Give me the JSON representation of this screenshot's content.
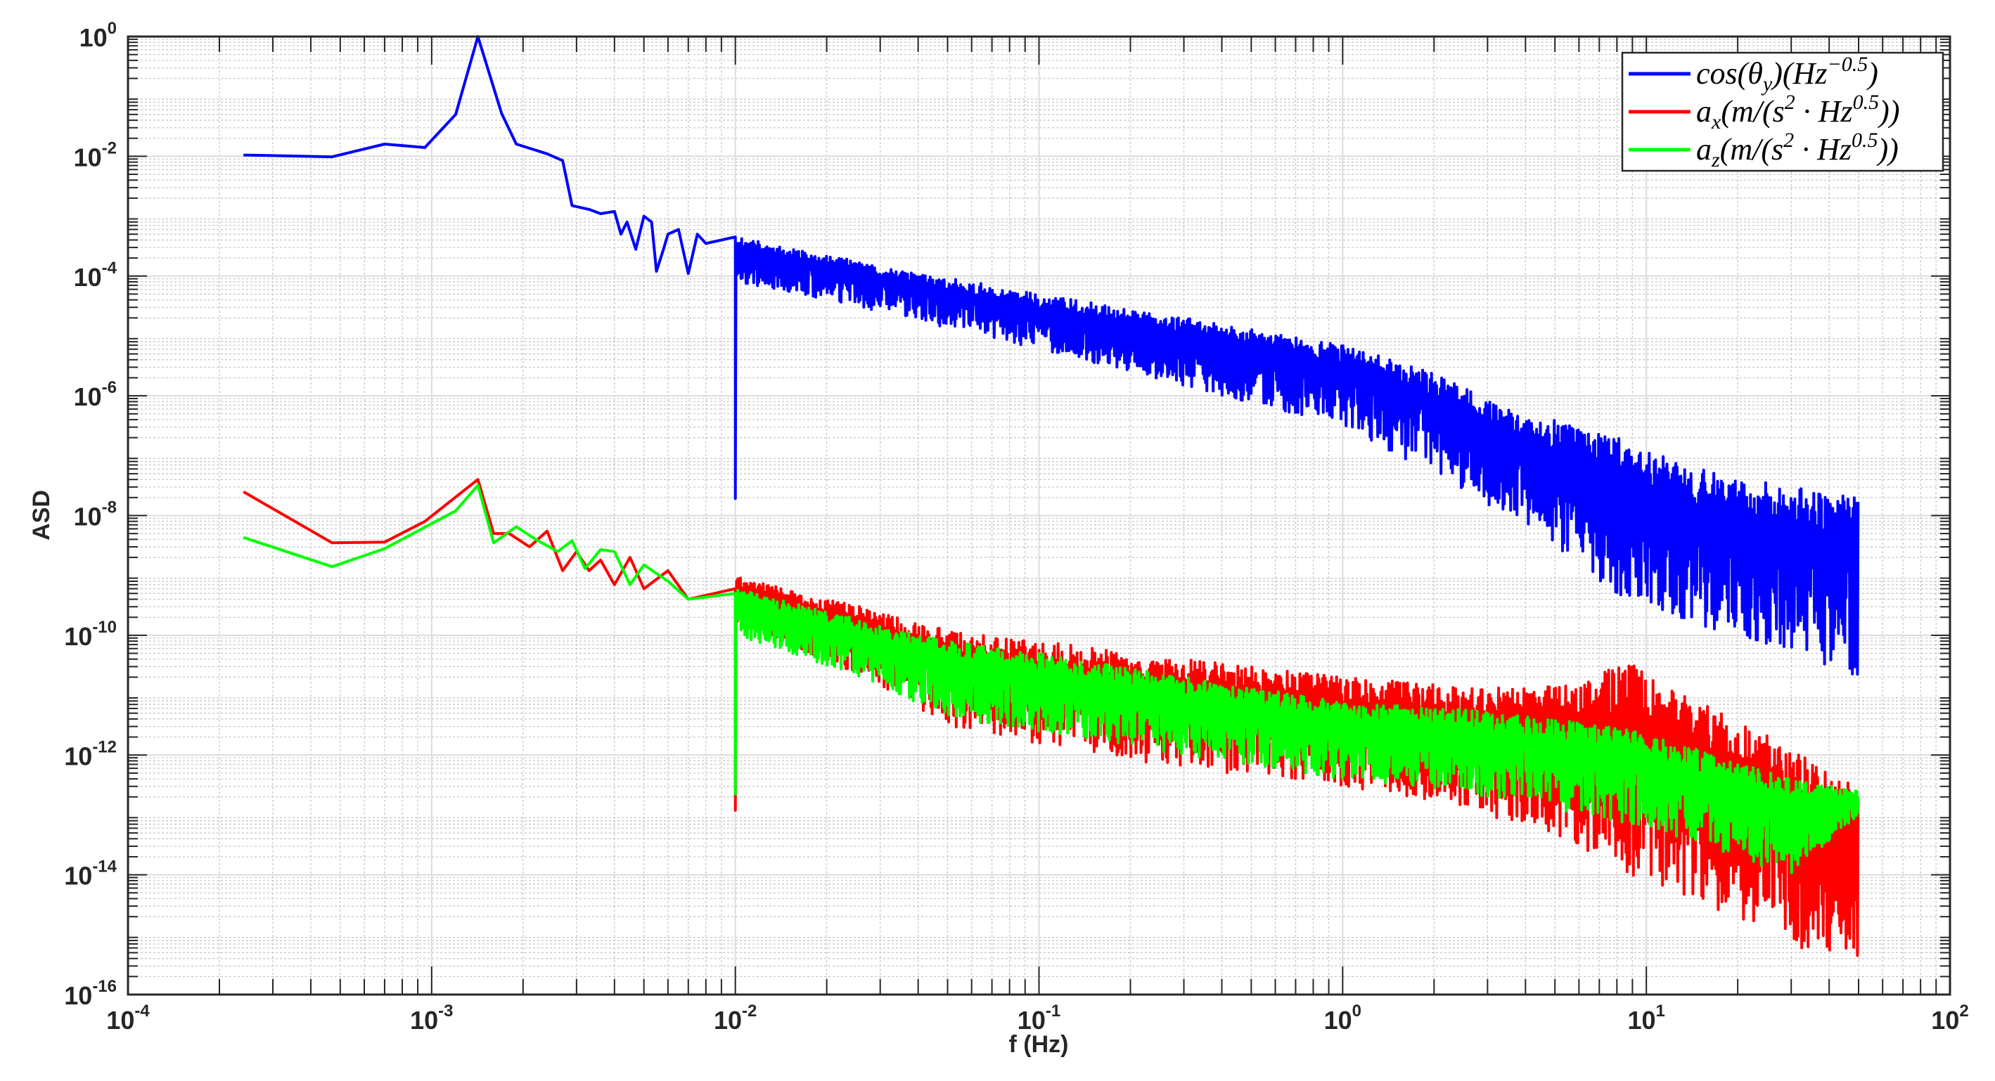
{
  "chart_data": {
    "type": "line",
    "title": "",
    "xlabel": "f (Hz)",
    "ylabel": "ASD",
    "xscale": "log",
    "yscale": "log",
    "xlim": [
      0.0001,
      100
    ],
    "ylim": [
      1e-16,
      1
    ],
    "grid": true,
    "minor_grid": true,
    "legend_position": "upper right",
    "x_ticks": [
      {
        "value": 0.0001,
        "base": "10",
        "exp": "-4"
      },
      {
        "value": 0.001,
        "base": "10",
        "exp": "-3"
      },
      {
        "value": 0.01,
        "base": "10",
        "exp": "-2"
      },
      {
        "value": 0.1,
        "base": "10",
        "exp": "-1"
      },
      {
        "value": 1,
        "base": "10",
        "exp": "0"
      },
      {
        "value": 10,
        "base": "10",
        "exp": "1"
      },
      {
        "value": 100,
        "base": "10",
        "exp": "2"
      }
    ],
    "y_ticks": [
      {
        "value": 1,
        "base": "10",
        "exp": "0"
      },
      {
        "value": 0.01,
        "base": "10",
        "exp": "-2"
      },
      {
        "value": 0.0001,
        "base": "10",
        "exp": "-4"
      },
      {
        "value": 1e-06,
        "base": "10",
        "exp": "-6"
      },
      {
        "value": 1e-08,
        "base": "10",
        "exp": "-8"
      },
      {
        "value": 1e-10,
        "base": "10",
        "exp": "-10"
      },
      {
        "value": 1e-12,
        "base": "10",
        "exp": "-12"
      },
      {
        "value": 1e-14,
        "base": "10",
        "exp": "-14"
      },
      {
        "value": 1e-16,
        "base": "10",
        "exp": "-16"
      }
    ],
    "series": [
      {
        "name": "cos(θ_y)(Hz^-0.5)",
        "legend": {
          "main": "cos(θ",
          "sub": "y",
          "mid": ")(Hz",
          "sup": "−0.5",
          "end": ")"
        },
        "color": "#0000ff",
        "low_freq_points": [
          [
            0.00024,
            0.0105
          ],
          [
            0.00047,
            0.0098
          ],
          [
            0.0007,
            0.016
          ],
          [
            0.00095,
            0.014
          ],
          [
            0.0012,
            0.05
          ],
          [
            0.00142,
            1.0
          ],
          [
            0.0017,
            0.052
          ],
          [
            0.0019,
            0.016
          ],
          [
            0.0024,
            0.011
          ],
          [
            0.0027,
            0.0085
          ],
          [
            0.0029,
            0.0015
          ],
          [
            0.0033,
            0.0013
          ],
          [
            0.0036,
            0.0011
          ],
          [
            0.004,
            0.0012
          ],
          [
            0.0042,
            0.0005
          ],
          [
            0.0044,
            0.0008
          ],
          [
            0.0047,
            0.00028
          ],
          [
            0.005,
            0.001
          ],
          [
            0.0053,
            0.0008
          ],
          [
            0.0055,
            0.00012
          ],
          [
            0.0058,
            0.00028
          ],
          [
            0.006,
            0.0005
          ],
          [
            0.0065,
            0.0006
          ],
          [
            0.007,
            0.00011
          ],
          [
            0.0075,
            0.0005
          ],
          [
            0.008,
            0.00035
          ],
          [
            0.009,
            0.0004
          ],
          [
            0.01,
            0.00045
          ]
        ],
        "envelope": {
          "f": [
            0.01,
            0.03,
            0.1,
            0.3,
            1,
            2,
            3.5,
            5,
            8,
            15,
            30,
            50
          ],
          "upper": [
            0.00045,
            0.00015,
            5e-05,
            2e-05,
            7e-06,
            2.5e-06,
            6e-07,
            4e-07,
            2e-07,
            6e-08,
            3e-08,
            2e-08
          ],
          "lower": [
            8e-05,
            2.5e-05,
            6e-06,
            1.5e-06,
            3e-07,
            5e-08,
            1e-08,
            3e-09,
            5e-10,
            1.5e-10,
            5e-11,
            2e-11
          ]
        }
      },
      {
        "name": "a_x(m/(s^2·Hz^0.5))",
        "legend": {
          "main": "a",
          "sub": "x",
          "mid": "(m/(s",
          "sup": "2",
          "mid2": " · Hz",
          "sup2": "0.5",
          "end": "))"
        },
        "color": "#ff0000",
        "low_freq_points": [
          [
            0.00024,
            2.5e-08
          ],
          [
            0.00047,
            3.5e-09
          ],
          [
            0.0007,
            3.6e-09
          ],
          [
            0.00095,
            8e-09
          ],
          [
            0.00142,
            4e-08
          ],
          [
            0.0016,
            5e-09
          ],
          [
            0.0018,
            5e-09
          ],
          [
            0.0021,
            3e-09
          ],
          [
            0.0024,
            5.5e-09
          ],
          [
            0.0027,
            1.2e-09
          ],
          [
            0.003,
            2.5e-09
          ],
          [
            0.0033,
            1.2e-09
          ],
          [
            0.0036,
            1.8e-09
          ],
          [
            0.004,
            7e-10
          ],
          [
            0.0045,
            2e-09
          ],
          [
            0.005,
            6e-10
          ],
          [
            0.006,
            1.2e-09
          ],
          [
            0.007,
            4e-10
          ],
          [
            0.01,
            6e-10
          ]
        ],
        "envelope": {
          "f": [
            0.01,
            0.03,
            0.05,
            0.1,
            0.3,
            1,
            3,
            6,
            8.9,
            12,
            20,
            35,
            50
          ],
          "upper": [
            1e-09,
            2.5e-10,
            1.2e-10,
            8e-11,
            4e-11,
            2e-11,
            1.3e-11,
            1.6e-11,
            4e-11,
            1.2e-11,
            4e-12,
            8e-13,
            3e-13
          ],
          "lower": [
            1.5e-10,
            1.5e-11,
            3e-12,
            1.5e-12,
            6e-13,
            3e-13,
            1e-13,
            3e-14,
            1e-14,
            5e-15,
            2e-15,
            5e-16,
            3e-16
          ]
        }
      },
      {
        "name": "a_z(m/(s^2·Hz^0.5))",
        "legend": {
          "main": "a",
          "sub": "z",
          "mid": "(m/(s",
          "sup": "2",
          "mid2": " · Hz",
          "sup2": "0.5",
          "end": "))"
        },
        "color": "#00ff00",
        "low_freq_points": [
          [
            0.00024,
            4.3e-09
          ],
          [
            0.00047,
            1.4e-09
          ],
          [
            0.0007,
            2.8e-09
          ],
          [
            0.0012,
            1.2e-08
          ],
          [
            0.00142,
            3.2e-08
          ],
          [
            0.0016,
            3.5e-09
          ],
          [
            0.0019,
            6.5e-09
          ],
          [
            0.0022,
            4e-09
          ],
          [
            0.0026,
            2.5e-09
          ],
          [
            0.0029,
            3.8e-09
          ],
          [
            0.0032,
            1.3e-09
          ],
          [
            0.0036,
            2.7e-09
          ],
          [
            0.004,
            2.5e-09
          ],
          [
            0.0045,
            7e-10
          ],
          [
            0.005,
            1.5e-09
          ],
          [
            0.006,
            8e-10
          ],
          [
            0.007,
            4e-10
          ],
          [
            0.01,
            5e-10
          ]
        ],
        "envelope": {
          "f": [
            0.01,
            0.03,
            0.05,
            0.1,
            0.3,
            1,
            3,
            8,
            15,
            30,
            50
          ],
          "upper": [
            6e-10,
            1.5e-10,
            8e-11,
            5e-11,
            2e-11,
            8e-12,
            5.5e-12,
            3e-12,
            1.2e-12,
            4e-13,
            2.5e-13
          ],
          "lower": [
            1e-10,
            1.5e-11,
            4e-12,
            2.5e-12,
            1e-12,
            4e-13,
            2e-13,
            8e-14,
            3e-14,
            1e-14,
            1e-13
          ]
        }
      }
    ]
  },
  "axes": {
    "xlabel": "f (Hz)",
    "ylabel": "ASD"
  }
}
